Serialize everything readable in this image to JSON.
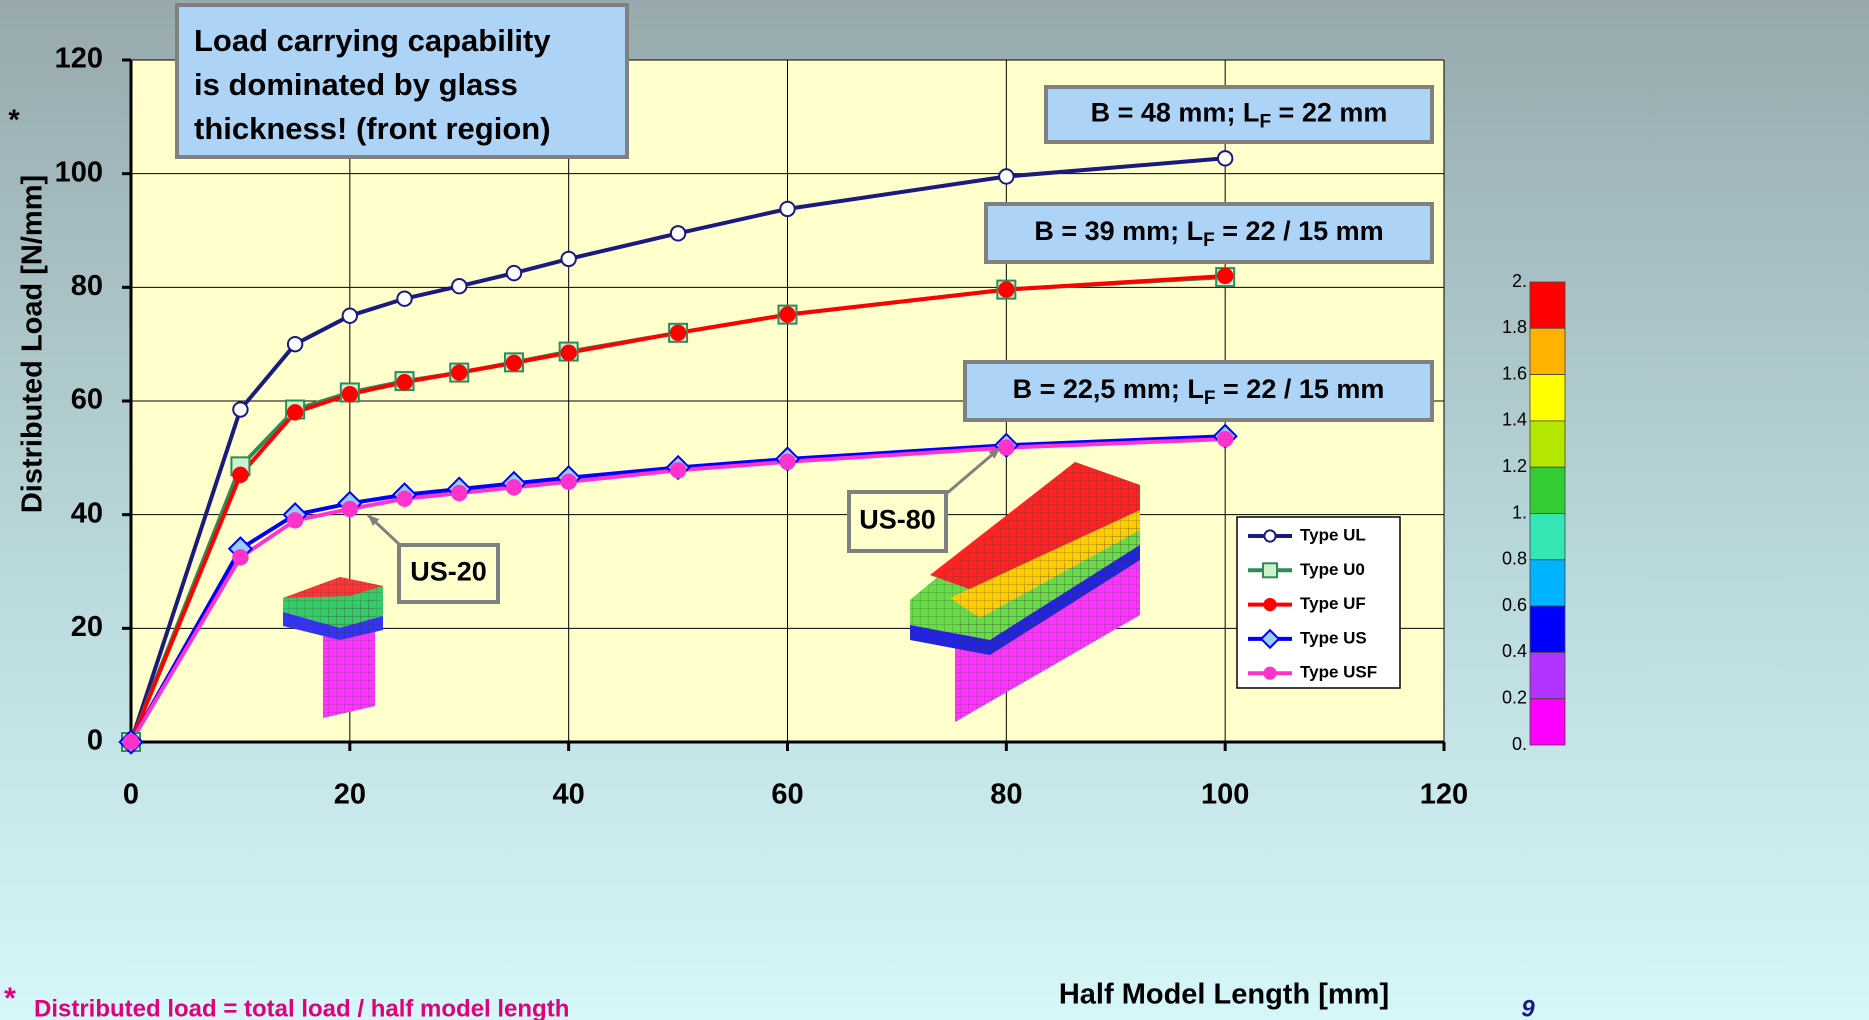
{
  "chart_data": {
    "type": "line",
    "x_title": "Half Model Length [mm]",
    "y_title": "Distributed Load [N/mm]",
    "y_title_mark": "*",
    "x": [
      0,
      10,
      15,
      20,
      25,
      30,
      35,
      40,
      50,
      60,
      80,
      100
    ],
    "series": [
      {
        "name": "Type UL",
        "color": "#1a1a80",
        "marker": "circle",
        "marker_fill": "#ffffff",
        "values": [
          0,
          58.5,
          70,
          75,
          78,
          80.2,
          82.5,
          85,
          89.5,
          93.8,
          99.5,
          102.7
        ]
      },
      {
        "name": "Type U0",
        "color": "#2e8b57",
        "marker": "square",
        "marker_fill": "#ccf2cc",
        "values": [
          0,
          48.5,
          58.5,
          61.5,
          63.5,
          65,
          66.8,
          68.7,
          72,
          75.2,
          79.6,
          81.8
        ]
      },
      {
        "name": "Type UF",
        "color": "#ff0000",
        "marker": "circle",
        "marker_fill": "#ff0000",
        "values": [
          0,
          47,
          58,
          61.2,
          63.3,
          65,
          66.7,
          68.5,
          72,
          75.2,
          79.6,
          82
        ]
      },
      {
        "name": "Type US",
        "color": "#0000ff",
        "marker": "diamond",
        "marker_fill": "#99ccff",
        "values": [
          0,
          34,
          40,
          42,
          43.5,
          44.5,
          45.5,
          46.5,
          48.3,
          49.8,
          52.2,
          53.8
        ]
      },
      {
        "name": "Type USF",
        "color": "#ff33cc",
        "marker": "circle",
        "marker_fill": "#ff33cc",
        "values": [
          0,
          32.5,
          39,
          41,
          42.8,
          43.8,
          44.8,
          45.8,
          47.8,
          49.3,
          51.8,
          53.3
        ]
      }
    ],
    "xlim": [
      0,
      120
    ],
    "xticks": [
      0,
      20,
      40,
      60,
      80,
      100,
      120
    ],
    "ylim": [
      0,
      120
    ],
    "yticks": [
      0,
      20,
      40,
      60,
      80,
      100,
      120
    ],
    "grid": true,
    "callout": [
      "Load carrying capability",
      "is dominated by glass",
      "thickness! (front region)"
    ],
    "group_labels": [
      [
        "B = 48 mm; L",
        "F",
        " = 22 mm"
      ],
      [
        "B = 39 mm; L",
        "F",
        " = 22 / 15 mm"
      ],
      [
        "B = 22,5 mm; L",
        "F",
        " = 22 / 15 mm"
      ]
    ],
    "model_labels": [
      "US-20",
      "US-80"
    ],
    "colorbar": {
      "labels": [
        "2.",
        "1.8",
        "1.6",
        "1.4",
        "1.2",
        "1.",
        "0.8",
        "0.6",
        "0.4",
        "0.2",
        "0."
      ],
      "colors": [
        "#ff0000",
        "#ffb300",
        "#ffff00",
        "#b3e600",
        "#33cc33",
        "#33e6b3",
        "#00b3ff",
        "#0000ff",
        "#b333ff",
        "#ff00ff"
      ]
    },
    "footnote_mark": "*",
    "footnote": "Distributed load  =  total load / half model length",
    "page_number": "9"
  }
}
